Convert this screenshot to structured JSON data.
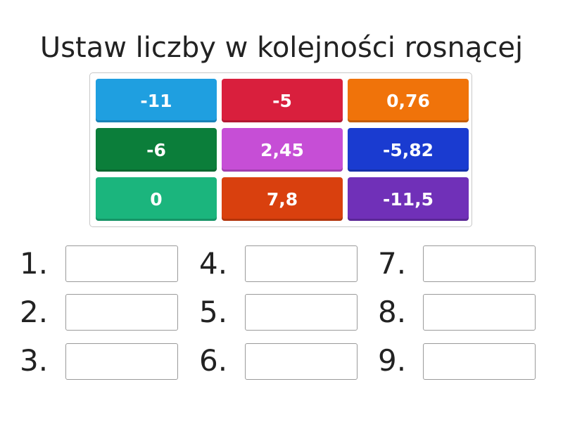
{
  "title": "Ustaw liczby w kolejności rosnącej",
  "tiles": [
    {
      "label": "-11",
      "color": "#1f9fe0"
    },
    {
      "label": "-5",
      "color": "#d91f3d"
    },
    {
      "label": "0,76",
      "color": "#f0730a"
    },
    {
      "label": "-6",
      "color": "#0b7e3a"
    },
    {
      "label": "2,45",
      "color": "#c64ed6"
    },
    {
      "label": "-5,82",
      "color": "#1a3bd0"
    },
    {
      "label": "0",
      "color": "#1bb57d"
    },
    {
      "label": "7,8",
      "color": "#d9400e"
    },
    {
      "label": "-11,5",
      "color": "#7030b8"
    }
  ],
  "slots": [
    {
      "number": "1."
    },
    {
      "number": "2."
    },
    {
      "number": "3."
    },
    {
      "number": "4."
    },
    {
      "number": "5."
    },
    {
      "number": "6."
    },
    {
      "number": "7."
    },
    {
      "number": "8."
    },
    {
      "number": "9."
    }
  ]
}
